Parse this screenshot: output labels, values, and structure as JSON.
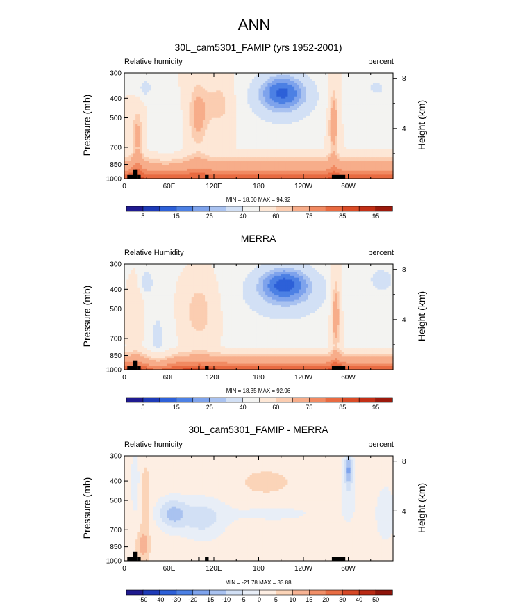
{
  "figure": {
    "title": "ANN"
  },
  "colors": {
    "abs_palette": [
      "#1f1a8f",
      "#1e3bb8",
      "#2d60d8",
      "#4c80e4",
      "#7ea3ec",
      "#a9c2f0",
      "#d2e0f5",
      "#f3f3f1",
      "#fde7d6",
      "#fbcdb1",
      "#f7ad8a",
      "#f18a62",
      "#e86a41",
      "#da4c27",
      "#c22f16",
      "#9b190c"
    ],
    "diff_palette": [
      "#1f1a8f",
      "#1e3bb8",
      "#2d60d8",
      "#4c80e4",
      "#7ea3ec",
      "#a9c2f0",
      "#d2e0f5",
      "#e8eef7",
      "#fdeee3",
      "#fbd4b8",
      "#f7b394",
      "#f18f68",
      "#e86d44",
      "#d64826",
      "#b92a14",
      "#8e140a"
    ],
    "topography": "#000000"
  },
  "chart_data": [
    {
      "type": "heatmap",
      "title": "30L_cam5301_FAMIP (yrs 1952-2001)",
      "left_label": "Relative humidity",
      "right_label": "percent",
      "ylabel": "Pressure (mb)",
      "ylabel_right": "Height (km)",
      "x_ticks": [
        "0",
        "60E",
        "120E",
        "180",
        "120W",
        "60W"
      ],
      "x_tick_values": [
        0,
        60,
        120,
        180,
        240,
        300
      ],
      "xlim": [
        0,
        360
      ],
      "y_ticks": [
        "300",
        "400",
        "500",
        "700",
        "850",
        "1000"
      ],
      "y_tick_values": [
        300,
        400,
        500,
        700,
        850,
        1000
      ],
      "ylim": [
        300,
        1000
      ],
      "y_scale": "log",
      "height_ticks": [
        "8",
        "4"
      ],
      "height_tick_values_km": [
        8,
        4
      ],
      "min_max_text": "MIN =  18.60  MAX =  94.92",
      "min": 18.6,
      "max": 94.92,
      "colorbar_labels": [
        "5",
        "15",
        "25",
        "40",
        "60",
        "75",
        "85",
        "95"
      ],
      "colorbar_levels": [
        2.5,
        5,
        10,
        15,
        20,
        25,
        30,
        40,
        50,
        60,
        65,
        75,
        80,
        85,
        90,
        95
      ],
      "field": "model"
    },
    {
      "type": "heatmap",
      "title": "MERRA",
      "left_label": "Relative Humidity",
      "right_label": "percent",
      "ylabel": "Pressure (mb)",
      "ylabel_right": "Height (km)",
      "x_ticks": [
        "0",
        "60E",
        "120E",
        "180",
        "120W",
        "60W"
      ],
      "x_tick_values": [
        0,
        60,
        120,
        180,
        240,
        300
      ],
      "xlim": [
        0,
        360
      ],
      "y_ticks": [
        "300",
        "400",
        "500",
        "700",
        "850",
        "1000"
      ],
      "y_tick_values": [
        300,
        400,
        500,
        700,
        850,
        1000
      ],
      "ylim": [
        300,
        1000
      ],
      "y_scale": "log",
      "height_ticks": [
        "8",
        "4"
      ],
      "height_tick_values_km": [
        8,
        4
      ],
      "min_max_text": "MIN =  18.35  MAX =  92.96",
      "min": 18.35,
      "max": 92.96,
      "colorbar_labels": [
        "5",
        "15",
        "25",
        "40",
        "60",
        "75",
        "85",
        "95"
      ],
      "colorbar_levels": [
        2.5,
        5,
        10,
        15,
        20,
        25,
        30,
        40,
        50,
        60,
        65,
        75,
        80,
        85,
        90,
        95
      ],
      "field": "obs"
    },
    {
      "type": "heatmap",
      "title": "30L_cam5301_FAMIP - MERRA",
      "left_label": "Relative humidity",
      "right_label": "percent",
      "ylabel": "Pressure (mb)",
      "ylabel_right": "Height (km)",
      "x_ticks": [
        "0",
        "60E",
        "120E",
        "180",
        "120W",
        "60W"
      ],
      "x_tick_values": [
        0,
        60,
        120,
        180,
        240,
        300
      ],
      "xlim": [
        0,
        360
      ],
      "y_ticks": [
        "300",
        "400",
        "500",
        "700",
        "850",
        "1000"
      ],
      "y_tick_values": [
        300,
        400,
        500,
        700,
        850,
        1000
      ],
      "ylim": [
        300,
        1000
      ],
      "y_scale": "log",
      "height_ticks": [
        "8",
        "4"
      ],
      "height_tick_values_km": [
        8,
        4
      ],
      "min_max_text": "MIN = -21.78  MAX =  33.88",
      "min": -21.78,
      "max": 33.88,
      "colorbar_labels": [
        "-50",
        "-40",
        "-30",
        "-20",
        "-15",
        "-10",
        "-5",
        "0",
        "5",
        "10",
        "15",
        "20",
        "30",
        "40",
        "50"
      ],
      "colorbar_levels": [
        -60,
        -50,
        -40,
        -30,
        -20,
        -15,
        -10,
        -5,
        0,
        5,
        10,
        15,
        20,
        30,
        40,
        50
      ],
      "field": "diff"
    }
  ]
}
